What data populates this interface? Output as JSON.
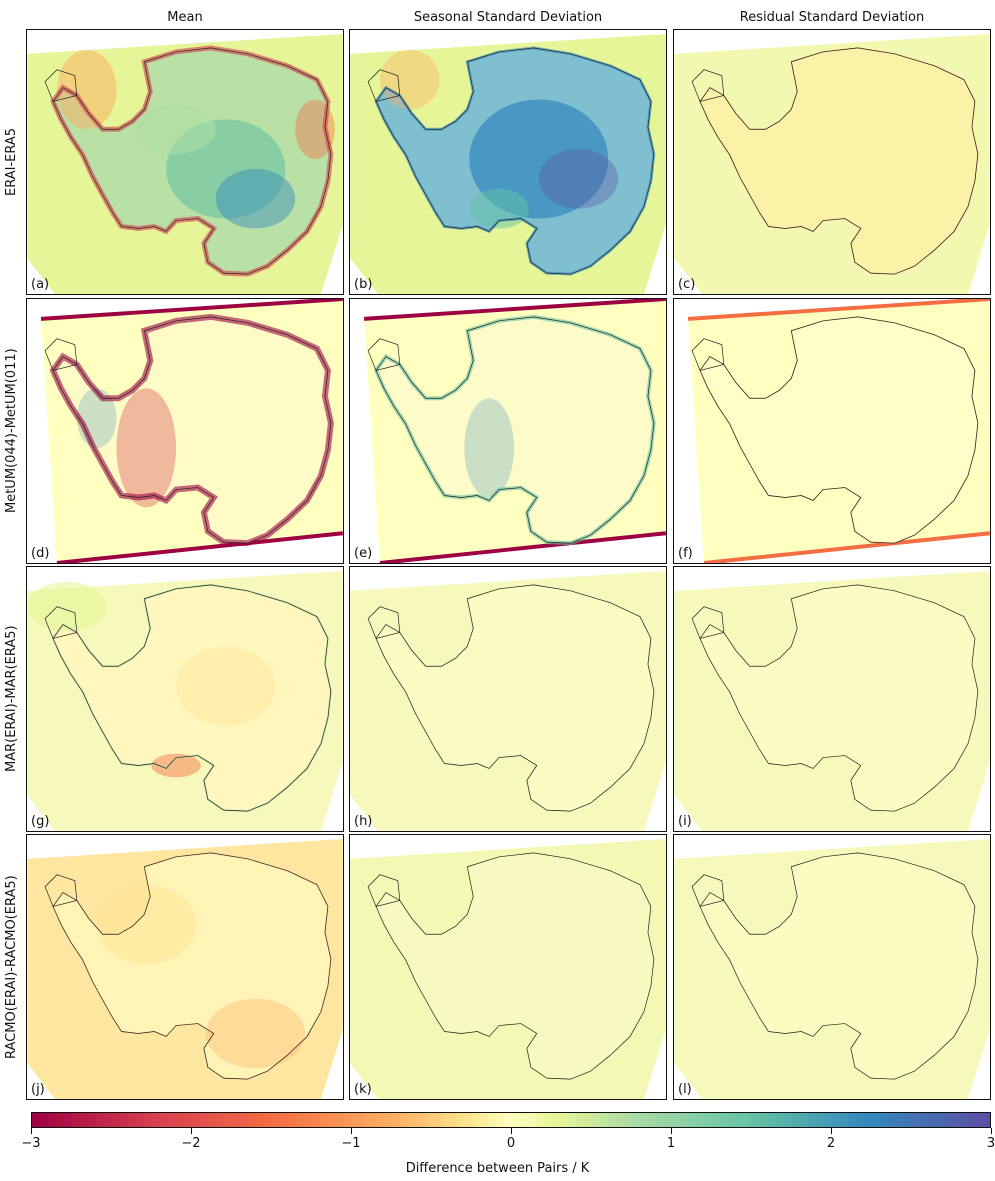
{
  "columns": [
    "Mean",
    "Seasonal Standard Deviation",
    "Residual Standard Deviation"
  ],
  "rows": [
    "ERAI-ERA5",
    "MetUM(044)-MetUM(011)",
    "MAR(ERAI)-MAR(ERA5)",
    "RACMO(ERAI)-RACMO(ERA5)"
  ],
  "panels": [
    {
      "label": "(a)",
      "style": "erai-mean"
    },
    {
      "label": "(b)",
      "style": "erai-seasonal"
    },
    {
      "label": "(c)",
      "style": "erai-residual"
    },
    {
      "label": "(d)",
      "style": "metum-mean"
    },
    {
      "label": "(e)",
      "style": "metum-seasonal"
    },
    {
      "label": "(f)",
      "style": "metum-residual"
    },
    {
      "label": "(g)",
      "style": "mar-mean"
    },
    {
      "label": "(h)",
      "style": "mar-seasonal"
    },
    {
      "label": "(i)",
      "style": "mar-residual"
    },
    {
      "label": "(j)",
      "style": "racmo-mean"
    },
    {
      "label": "(k)",
      "style": "racmo-seasonal"
    },
    {
      "label": "(l)",
      "style": "racmo-residual"
    }
  ],
  "colorbar": {
    "label": "Difference between Pairs / K",
    "ticks": [
      "−3",
      "−2",
      "−1",
      "0",
      "1",
      "2",
      "3"
    ],
    "colormap": [
      "#9e0142",
      "#d53e4f",
      "#f46d43",
      "#fdae61",
      "#fee08b",
      "#ffffbf",
      "#e6f598",
      "#abdda4",
      "#66c2a5",
      "#3288bd",
      "#5e4fa2"
    ]
  }
}
